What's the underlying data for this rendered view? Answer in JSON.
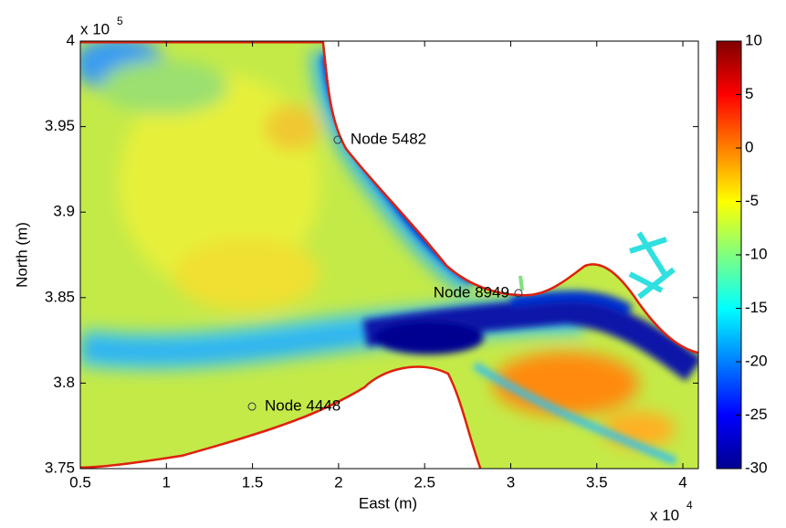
{
  "chart_data": {
    "type": "map",
    "xlabel": "East (m)",
    "ylabel": "North (m)",
    "x_exponent_base": "x 10",
    "x_exponent": "4",
    "y_exponent_base": "x 10",
    "y_exponent": "5",
    "xlim": [
      5000,
      40900
    ],
    "ylim": [
      375000,
      400000
    ],
    "xticks": [
      {
        "value": 5000,
        "label": "0.5"
      },
      {
        "value": 10000,
        "label": "1"
      },
      {
        "value": 15000,
        "label": "1.5"
      },
      {
        "value": 20000,
        "label": "2"
      },
      {
        "value": 25000,
        "label": "2.5"
      },
      {
        "value": 30000,
        "label": "3"
      },
      {
        "value": 35000,
        "label": "3.5"
      },
      {
        "value": 40000,
        "label": "4"
      }
    ],
    "yticks": [
      {
        "value": 375000,
        "label": "3.75"
      },
      {
        "value": 380000,
        "label": "3.8"
      },
      {
        "value": 385000,
        "label": "3.85"
      },
      {
        "value": 390000,
        "label": "3.9"
      },
      {
        "value": 395000,
        "label": "3.95"
      },
      {
        "value": 400000,
        "label": "4"
      }
    ],
    "colormap": "jet",
    "clim": [
      -30,
      10
    ],
    "cticks": [
      -30,
      -25,
      -20,
      -15,
      -10,
      -5,
      0,
      5,
      10
    ],
    "annotations": [
      {
        "label": "Node 5482",
        "x": 19950,
        "y": 394230
      },
      {
        "label": "Node 8949",
        "x": 30450,
        "y": 385260
      },
      {
        "label": "Node 4448",
        "x": 14970,
        "y": 378630
      }
    ]
  }
}
